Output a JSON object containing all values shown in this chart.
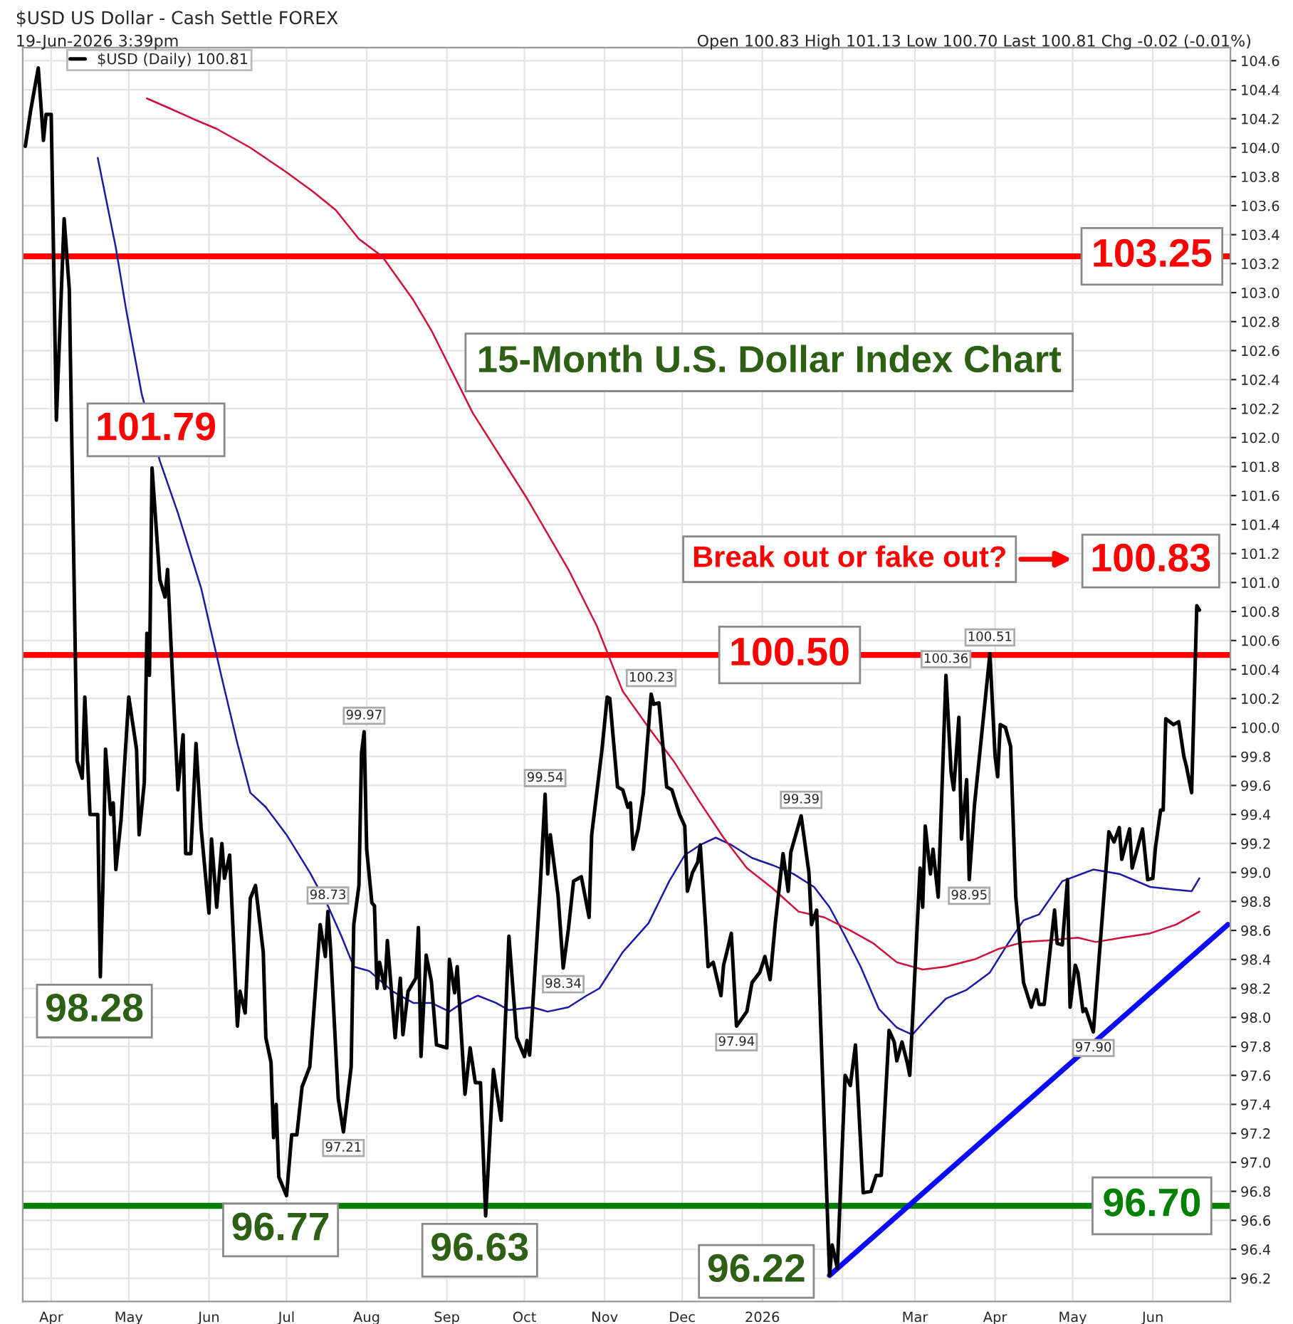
{
  "chart_data": {
    "type": "line",
    "title": "15-Month U.S. Dollar Index Chart",
    "subtitle": "$USD US Dollar - Cash Settle FOREX",
    "annotations": [
      "19-Jun-2026 3:39pm",
      "Open 100.83 High 101.13 Low 100.70 Last 100.81 Chg -0.02 (-0.01%)",
      "Break out or fake out?",
      {
        "text": "101.79",
        "x": "2025-05-10",
        "y": 101.79
      },
      {
        "text": "98.28",
        "x": "2025-04-20",
        "y": 98.28
      },
      {
        "text": "96.77",
        "x": "2025-07-01",
        "y": 96.77
      },
      {
        "text": "96.63",
        "x": "2025-09-16",
        "y": 96.63
      },
      {
        "text": "96.22",
        "x": "2026-01-27",
        "y": 96.22
      },
      {
        "text": "100.83",
        "x": "2026-06-19",
        "y": 100.83
      }
    ],
    "xlim": [
      "2025-03-21",
      "2026-07-01"
    ],
    "xticks": [
      {
        "value": "2025-04-01",
        "label": "Apr"
      },
      {
        "value": "2025-05-01",
        "label": "May"
      },
      {
        "value": "2025-06-01",
        "label": "Jun"
      },
      {
        "value": "2025-07-01",
        "label": "Jul"
      },
      {
        "value": "2025-08-01",
        "label": "Aug"
      },
      {
        "value": "2025-09-01",
        "label": "Sep"
      },
      {
        "value": "2025-10-01",
        "label": "Oct"
      },
      {
        "value": "2025-11-01",
        "label": "Nov"
      },
      {
        "value": "2025-12-01",
        "label": "Dec"
      },
      {
        "value": "2026-01-01",
        "label": "2026"
      },
      {
        "value": "2026-02-01",
        "label": null
      },
      {
        "value": "2026-03-01",
        "label": "Mar"
      },
      {
        "value": "2026-04-01",
        "label": "Apr"
      },
      {
        "value": "2026-05-01",
        "label": "May"
      },
      {
        "value": "2026-06-01",
        "label": "Jun"
      }
    ],
    "ylim": [
      96.04,
      104.69
    ],
    "yticks": [
      96.2,
      96.4,
      96.6,
      96.8,
      {
        "value": 97,
        "label": "97.0"
      },
      97.2,
      97.4,
      97.6,
      97.8,
      {
        "value": 98,
        "label": "98.0"
      },
      98.2,
      98.4,
      98.6,
      98.8,
      {
        "value": 99,
        "label": "99.0"
      },
      99.2,
      99.4,
      99.6,
      99.8,
      {
        "value": 100,
        "label": "100.0"
      },
      100.2,
      100.4,
      100.6,
      100.8,
      {
        "value": 101,
        "label": "101.0"
      },
      101.2,
      101.4,
      101.6,
      101.8,
      {
        "value": 102,
        "label": "102.0"
      },
      102.2,
      102.4,
      102.6,
      102.8,
      {
        "value": 103,
        "label": "103.0"
      },
      103.2,
      103.4,
      103.6,
      103.8,
      {
        "value": 104,
        "label": "104.0"
      },
      104.2,
      104.4,
      104.6
    ],
    "grid": true,
    "legend": "top left",
    "ref_lines": [
      {
        "axis": "y",
        "value": 103.25,
        "label": "103.25",
        "color": "#ff0000"
      },
      {
        "axis": "y",
        "value": 100.5,
        "label": "100.50",
        "color": "#ff0000"
      },
      {
        "axis": "y",
        "value": 96.7,
        "label": "96.70",
        "color": "#008000"
      }
    ],
    "series": [
      {
        "name": "$USD (Daily) 100.81",
        "color": "#000000",
        "x": [
          "2025-03-22",
          "2025-03-24",
          "2025-03-27",
          "2025-03-29",
          "2025-03-30",
          "2025-04-01",
          "2025-04-03",
          "2025-04-06",
          "2025-04-08",
          "2025-04-11",
          "2025-04-13",
          "2025-04-14",
          "2025-04-16",
          "2025-04-19",
          "2025-04-20",
          "2025-04-21",
          "2025-04-22",
          "2025-04-24",
          "2025-04-25",
          "2025-04-26",
          "2025-04-28",
          "2025-05-01",
          "2025-05-04",
          "2025-05-05",
          "2025-05-07",
          "2025-05-08",
          "2025-05-09",
          "2025-05-10",
          "2025-05-13",
          "2025-05-15",
          "2025-05-16",
          "2025-05-18",
          "2025-05-20",
          "2025-05-22",
          "2025-05-23",
          "2025-05-25",
          "2025-05-27",
          "2025-05-29",
          "2025-06-01",
          "2025-06-02",
          "2025-06-04",
          "2025-06-06",
          "2025-06-07",
          "2025-06-09",
          "2025-06-12",
          "2025-06-13",
          "2025-06-15",
          "2025-06-17",
          "2025-06-19",
          "2025-06-22",
          "2025-06-23",
          "2025-06-25",
          "2025-06-26",
          "2025-06-27",
          "2025-06-28",
          "2025-07-01",
          "2025-07-03",
          "2025-07-05",
          "2025-07-07",
          "2025-07-10",
          "2025-07-14",
          "2025-07-16",
          "2025-07-17",
          "2025-07-18",
          "2025-07-21",
          "2025-07-23",
          "2025-07-26",
          "2025-07-27",
          "2025-07-29",
          "2025-07-30",
          "2025-07-31",
          "2025-08-01",
          "2025-08-03",
          "2025-08-04",
          "2025-08-05",
          "2025-08-06",
          "2025-08-08",
          "2025-08-09",
          "2025-08-12",
          "2025-08-14",
          "2025-08-15",
          "2025-08-17",
          "2025-08-20",
          "2025-08-21",
          "2025-08-22",
          "2025-08-24",
          "2025-08-26",
          "2025-08-28",
          "2025-09-01",
          "2025-09-02",
          "2025-09-04",
          "2025-09-05",
          "2025-09-08",
          "2025-09-10",
          "2025-09-12",
          "2025-09-14",
          "2025-09-16",
          "2025-09-19",
          "2025-09-22",
          "2025-09-25",
          "2025-09-28",
          "2025-10-01",
          "2025-10-02",
          "2025-10-03",
          "2025-10-07",
          "2025-10-09",
          "2025-10-10",
          "2025-10-11",
          "2025-10-14",
          "2025-10-16",
          "2025-10-18",
          "2025-10-20",
          "2025-10-22",
          "2025-10-23",
          "2025-10-26",
          "2025-10-27",
          "2025-10-31",
          "2025-11-02",
          "2025-11-03",
          "2025-11-06",
          "2025-11-08",
          "2025-11-10",
          "2025-11-11",
          "2025-11-12",
          "2025-11-14",
          "2025-11-16",
          "2025-11-19",
          "2025-11-20",
          "2025-11-22",
          "2025-11-25",
          "2025-11-27",
          "2025-11-30",
          "2025-12-02",
          "2025-12-03",
          "2025-12-05",
          "2025-12-07",
          "2025-12-08",
          "2025-12-10",
          "2025-12-11",
          "2025-12-13",
          "2025-12-16",
          "2025-12-17",
          "2025-12-18",
          "2025-12-20",
          "2025-12-22",
          "2025-12-26",
          "2025-12-28",
          "2025-12-31",
          "2026-01-02",
          "2026-01-04",
          "2026-01-06",
          "2026-01-09",
          "2026-01-11",
          "2026-01-12",
          "2026-01-16",
          "2026-01-19",
          "2026-01-20",
          "2026-01-22",
          "2026-01-27",
          "2026-01-28",
          "2026-01-30",
          "2026-02-02",
          "2026-02-04",
          "2026-02-06",
          "2026-02-09",
          "2026-02-12",
          "2026-02-14",
          "2026-02-16",
          "2026-02-19",
          "2026-02-21",
          "2026-02-22",
          "2026-02-24",
          "2026-02-26",
          "2026-02-27",
          "2026-03-03",
          "2026-03-04",
          "2026-03-05",
          "2026-03-07",
          "2026-03-08",
          "2026-03-10",
          "2026-03-13",
          "2026-03-15",
          "2026-03-16",
          "2026-03-18",
          "2026-03-19",
          "2026-03-21",
          "2026-03-22",
          "2026-03-24",
          "2026-03-30",
          "2026-04-01",
          "2026-04-02",
          "2026-04-03",
          "2026-04-05",
          "2026-04-07",
          "2026-04-09",
          "2026-04-12",
          "2026-04-15",
          "2026-04-17",
          "2026-04-18",
          "2026-04-20",
          "2026-04-24",
          "2026-04-25",
          "2026-04-27",
          "2026-04-29",
          "2026-04-30",
          "2026-05-02",
          "2026-05-03",
          "2026-05-05",
          "2026-05-06",
          "2026-05-09",
          "2026-05-15",
          "2026-05-17",
          "2026-05-19",
          "2026-05-20",
          "2026-05-23",
          "2026-05-24",
          "2026-05-28",
          "2026-05-30",
          "2026-06-01",
          "2026-06-02",
          "2026-06-04",
          "2026-06-05",
          "2026-06-06",
          "2026-06-09",
          "2026-06-11",
          "2026-06-13",
          "2026-06-14",
          "2026-06-16",
          "2026-06-18",
          "2026-06-19"
        ],
        "values": [
          104.01,
          104.25,
          104.55,
          104.05,
          104.23,
          104.23,
          102.12,
          103.51,
          103.02,
          99.77,
          99.65,
          100.21,
          99.4,
          99.4,
          98.28,
          98.91,
          99.85,
          99.4,
          99.48,
          99.02,
          99.36,
          100.21,
          99.85,
          99.26,
          99.62,
          100.65,
          100.36,
          101.79,
          101.02,
          100.9,
          101.09,
          100.31,
          99.57,
          99.95,
          99.13,
          99.13,
          99.89,
          99.3,
          98.72,
          99.23,
          98.76,
          99.2,
          98.96,
          99.12,
          97.94,
          98.18,
          98.03,
          98.82,
          98.91,
          98.45,
          97.86,
          97.69,
          97.17,
          97.4,
          96.9,
          96.77,
          97.19,
          97.19,
          97.52,
          97.66,
          98.64,
          98.42,
          98.73,
          98.48,
          97.44,
          97.21,
          97.66,
          98.64,
          98.91,
          99.82,
          99.97,
          99.16,
          98.79,
          98.77,
          98.2,
          98.38,
          98.2,
          98.53,
          97.86,
          98.27,
          97.88,
          98.18,
          98.27,
          98.62,
          97.73,
          98.43,
          98.25,
          97.81,
          97.79,
          98.4,
          98.17,
          98.35,
          97.47,
          97.79,
          97.55,
          97.55,
          96.63,
          97.64,
          97.29,
          98.56,
          97.86,
          97.73,
          97.84,
          97.74,
          98.87,
          99.54,
          98.99,
          99.26,
          98.84,
          98.34,
          98.61,
          98.94,
          98.96,
          98.97,
          98.69,
          99.26,
          99.85,
          100.21,
          100.2,
          99.59,
          99.57,
          99.45,
          99.48,
          99.16,
          99.3,
          99.55,
          100.23,
          100.16,
          100.17,
          99.59,
          99.57,
          99.4,
          99.32,
          98.87,
          99.0,
          99.07,
          99.19,
          98.65,
          98.35,
          98.38,
          98.15,
          98.36,
          98.43,
          98.58,
          97.94,
          98.04,
          98.24,
          98.31,
          98.42,
          98.26,
          98.65,
          99.13,
          98.87,
          99.14,
          99.39,
          99.0,
          98.64,
          98.74,
          96.22,
          96.43,
          96.27,
          97.6,
          97.53,
          97.81,
          96.79,
          96.8,
          96.91,
          96.91,
          97.91,
          97.83,
          97.7,
          97.83,
          97.69,
          97.6,
          99.03,
          98.76,
          99.32,
          98.99,
          99.16,
          98.83,
          100.36,
          99.69,
          99.57,
          100.07,
          99.23,
          99.64,
          98.95,
          99.46,
          100.51,
          99.8,
          99.66,
          100.02,
          100.0,
          99.87,
          98.83,
          98.24,
          98.07,
          98.19,
          98.09,
          98.09,
          98.74,
          98.51,
          98.5,
          98.95,
          98.07,
          98.36,
          98.31,
          98.04,
          98.06,
          97.9,
          99.28,
          99.21,
          99.31,
          99.09,
          99.3,
          99.03,
          99.3,
          98.95,
          98.96,
          99.17,
          99.43,
          99.43,
          100.06,
          100.02,
          100.04,
          99.8,
          99.73,
          99.55,
          100.84,
          100.81
        ],
        "value_labels": [
          null,
          null,
          null,
          null,
          null,
          null,
          null,
          null,
          null,
          null,
          null,
          null,
          null,
          null,
          null,
          null,
          null,
          null,
          null,
          null,
          null,
          null,
          null,
          null,
          null,
          null,
          null,
          null,
          null,
          null,
          null,
          null,
          null,
          null,
          null,
          null,
          null,
          null,
          null,
          null,
          null,
          null,
          null,
          null,
          null,
          null,
          null,
          null,
          null,
          null,
          null,
          null,
          null,
          null,
          null,
          null,
          null,
          null,
          null,
          null,
          null,
          null,
          "98.73",
          null,
          null,
          "97.21",
          null,
          null,
          null,
          null,
          "99.97",
          null,
          null,
          null,
          null,
          null,
          null,
          null,
          null,
          null,
          null,
          null,
          null,
          null,
          null,
          null,
          null,
          null,
          null,
          null,
          null,
          null,
          null,
          null,
          null,
          null,
          null,
          null,
          null,
          null,
          null,
          null,
          null,
          null,
          null,
          "99.54",
          null,
          null,
          null,
          "98.34",
          null,
          null,
          null,
          null,
          null,
          null,
          null,
          null,
          null,
          null,
          null,
          null,
          null,
          null,
          null,
          null,
          "100.23",
          null,
          null,
          null,
          null,
          null,
          null,
          null,
          null,
          null,
          null,
          null,
          null,
          null,
          null,
          null,
          null,
          null,
          "97.94",
          null,
          null,
          null,
          null,
          null,
          null,
          null,
          null,
          null,
          "99.39",
          null,
          null,
          null,
          null,
          null,
          null,
          null,
          null,
          null,
          null,
          null,
          null,
          null,
          null,
          null,
          null,
          null,
          null,
          null,
          null,
          null,
          null,
          null,
          null,
          null,
          "100.36",
          null,
          null,
          null,
          null,
          null,
          "98.95",
          null,
          "100.51",
          null,
          null,
          null,
          null,
          null,
          null,
          null,
          null,
          null,
          null,
          null,
          null,
          null,
          null,
          null,
          null,
          null,
          null,
          null,
          null,
          "97.90",
          null,
          null,
          null,
          null,
          null,
          null,
          null,
          null,
          null,
          null,
          null,
          null,
          null,
          null,
          null,
          null,
          null,
          null,
          null,
          null
        ]
      },
      {
        "type": "line",
        "color": "#1a1aa6",
        "x": [
          "2025-04-19",
          "2025-04-26",
          "2025-04-30",
          "2025-05-06",
          "2025-05-13",
          "2025-05-20",
          "2025-05-29",
          "2025-06-06",
          "2025-06-12",
          "2025-06-17",
          "2025-06-23",
          "2025-07-01",
          "2025-07-10",
          "2025-07-17",
          "2025-07-22",
          "2025-07-27",
          "2025-08-02",
          "2025-08-11",
          "2025-08-19",
          "2025-08-26",
          "2025-09-02",
          "2025-09-07",
          "2025-09-13",
          "2025-09-20",
          "2025-09-25",
          "2025-10-04",
          "2025-10-10",
          "2025-10-18",
          "2025-10-25",
          "2025-10-30",
          "2025-11-08",
          "2025-11-18",
          "2025-11-26",
          "2025-12-02",
          "2025-12-08",
          "2025-12-14",
          "2025-12-20",
          "2025-12-28",
          "2026-01-05",
          "2026-01-13",
          "2026-01-21",
          "2026-01-27",
          "2026-02-02",
          "2026-02-08",
          "2026-02-15",
          "2026-02-22",
          "2026-02-28",
          "2026-03-06",
          "2026-03-13",
          "2026-03-21",
          "2026-03-30",
          "2026-04-06",
          "2026-04-12",
          "2026-04-18",
          "2026-04-27",
          "2026-05-09",
          "2026-05-19",
          "2026-05-31",
          "2026-06-10",
          "2026-06-16",
          "2026-06-19"
        ],
        "values": [
          103.93,
          103.31,
          102.88,
          102.3,
          101.84,
          101.48,
          100.96,
          100.34,
          99.89,
          99.55,
          99.45,
          99.26,
          99.0,
          98.77,
          98.57,
          98.35,
          98.32,
          98.18,
          98.1,
          98.1,
          98.04,
          98.1,
          98.15,
          98.1,
          98.05,
          98.07,
          98.04,
          98.07,
          98.15,
          98.2,
          98.45,
          98.65,
          98.94,
          99.12,
          99.19,
          99.24,
          99.19,
          99.1,
          99.05,
          98.99,
          98.9,
          98.76,
          98.56,
          98.35,
          98.06,
          97.93,
          97.88,
          98.0,
          98.13,
          98.19,
          98.31,
          98.51,
          98.67,
          98.71,
          98.94,
          99.02,
          98.99,
          98.9,
          98.88,
          98.87,
          98.96
        ]
      },
      {
        "type": "line",
        "color": "#d0103a",
        "x": [
          "2025-05-08",
          "2025-05-17",
          "2025-05-27",
          "2025-06-04",
          "2025-06-17",
          "2025-07-01",
          "2025-07-11",
          "2025-07-20",
          "2025-07-29",
          "2025-08-07",
          "2025-08-19",
          "2025-08-26",
          "2025-09-11",
          "2025-10-02",
          "2025-10-18",
          "2025-10-29",
          "2025-11-08",
          "2025-11-18",
          "2025-11-28",
          "2025-12-08",
          "2025-12-17",
          "2025-12-26",
          "2026-01-05",
          "2026-01-15",
          "2026-01-25",
          "2026-02-04",
          "2026-02-13",
          "2026-02-22",
          "2026-03-04",
          "2026-03-13",
          "2026-03-24",
          "2026-04-02",
          "2026-04-12",
          "2026-04-21",
          "2026-05-03",
          "2026-05-10",
          "2026-05-20",
          "2026-05-31",
          "2026-06-10",
          "2026-06-19"
        ],
        "values": [
          104.34,
          104.27,
          104.19,
          104.13,
          104.0,
          103.83,
          103.7,
          103.57,
          103.37,
          103.25,
          102.95,
          102.74,
          102.17,
          101.58,
          101.09,
          100.7,
          100.25,
          100.0,
          99.76,
          99.48,
          99.24,
          99.03,
          98.89,
          98.73,
          98.69,
          98.6,
          98.51,
          98.38,
          98.33,
          98.35,
          98.4,
          98.47,
          98.52,
          98.53,
          98.55,
          98.52,
          98.55,
          98.58,
          98.64,
          98.73
        ]
      },
      {
        "type": "line",
        "color": "#0a0aff",
        "x": [
          "2026-01-27",
          "2026-06-30"
        ],
        "values": [
          96.22,
          98.64
        ]
      }
    ]
  }
}
